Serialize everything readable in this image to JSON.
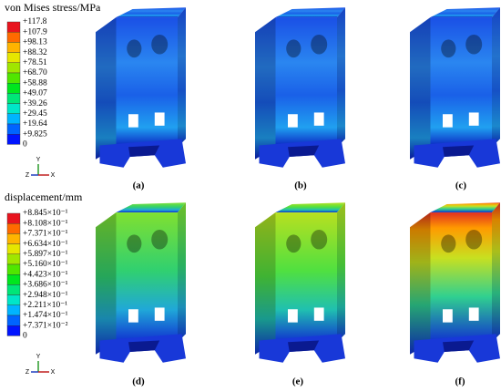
{
  "legend_stress": {
    "title": "von Mises stress/MPa",
    "labels": [
      "+117.8",
      "+107.9",
      "+98.13",
      "+88.32",
      "+78.51",
      "+68.70",
      "+58.88",
      "+49.07",
      "+39.26",
      "+29.45",
      "+19.64",
      "+9.825",
      "0"
    ]
  },
  "legend_displacement": {
    "title": "displacement/mm",
    "labels": [
      "+8.845×10⁻¹",
      "+8.108×10⁻¹",
      "+7.371×10⁻¹",
      "+6.634×10⁻¹",
      "+5.897×10⁻¹",
      "+5.160×10⁻¹",
      "+4.423×10⁻¹",
      "+3.686×10⁻¹",
      "+2.948×10⁻¹",
      "+2.211×10⁻¹",
      "+1.474×10⁻¹",
      "+7.371×10⁻²",
      "0"
    ]
  },
  "triad_top": {
    "y": "Y",
    "z": "Z",
    "x": "X"
  },
  "triad_bottom": {
    "y": "Y",
    "z": "Z",
    "x": "X"
  },
  "panels": [
    "(a)",
    "(b)",
    "(c)",
    "(d)",
    "(e)",
    "(f)"
  ]
}
